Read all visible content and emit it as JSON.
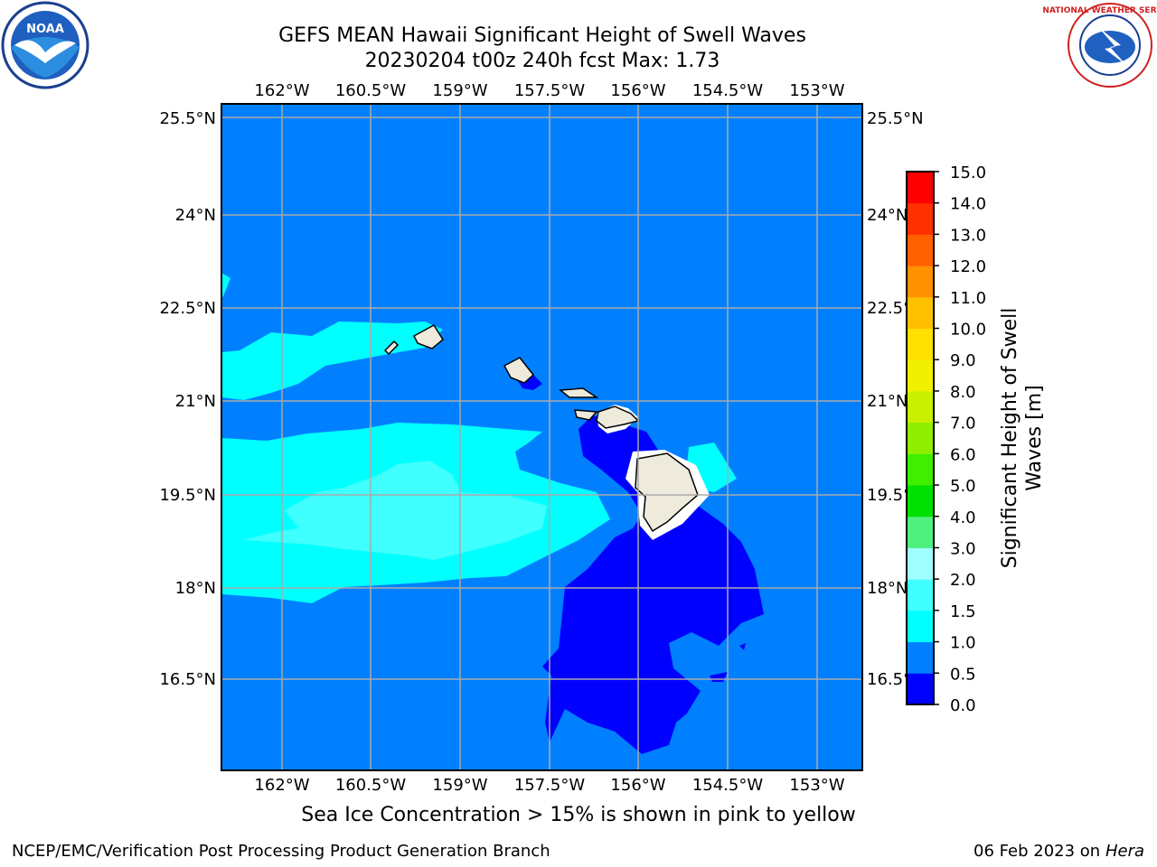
{
  "title_line1": "GEFS MEAN Hawaii Significant Height of Swell Waves",
  "title_line2": "20230204 t00z 240h fcst   Max: 1.73",
  "lon_ticks": [
    "162°W",
    "160.5°W",
    "159°W",
    "157.5°W",
    "156°W",
    "154.5°W",
    "153°W"
  ],
  "lat_ticks": [
    "25.5°N",
    "24°N",
    "22.5°N",
    "21°N",
    "19.5°N",
    "18°N",
    "16.5°N"
  ],
  "colorbar": {
    "label": "Significant Height of Swell Waves [m]",
    "label_line1": "Significant Height of Swell",
    "label_line2": "Waves [m]",
    "ticks": [
      "0.0",
      "0.5",
      "1.0",
      "1.5",
      "2.0",
      "3.0",
      "4.0",
      "5.0",
      "6.0",
      "7.0",
      "8.0",
      "9.0",
      "10.0",
      "11.0",
      "12.0",
      "13.0",
      "14.0",
      "15.0"
    ],
    "colors": [
      "#0000ff",
      "#0080ff",
      "#00ffff",
      "#40ffff",
      "#a0ffff",
      "#50f080",
      "#00e000",
      "#40ee00",
      "#90ee00",
      "#c8f000",
      "#f0f000",
      "#ffe000",
      "#ffc000",
      "#ff9000",
      "#ff6000",
      "#ff3000",
      "#ff0000"
    ]
  },
  "map_colors": {
    "ocean_1_0": "#0080ff",
    "ocean_0_5": "#0000ff",
    "ocean_1_5": "#00ffff",
    "ocean_2_0": "#40ffff",
    "land": "#eeeadc",
    "grid": "#aaaaaa"
  },
  "ice_note": "Sea Ice Concentration > 15% is shown in pink to yellow",
  "footer_left": "NCEP/EMC/Verification Post Processing Product Generation Branch",
  "footer_date": "06 Feb 2023 on",
  "footer_machine": "Hera",
  "logos": {
    "noaa": "NOAA",
    "nws": "NATIONAL WEATHER SERVICE"
  }
}
